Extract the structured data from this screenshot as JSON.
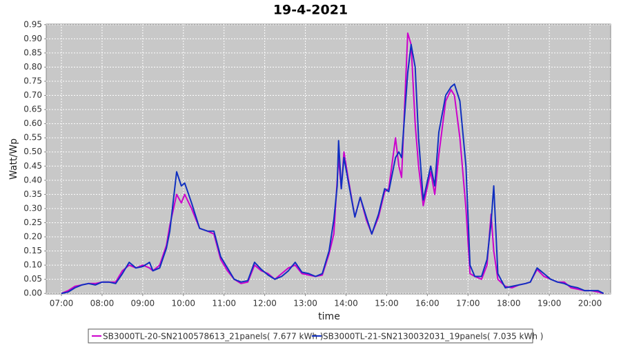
{
  "chart_data": {
    "type": "line",
    "title": "19-4-2021",
    "x_label": "time",
    "y_label": "Watt/Wp",
    "x": [
      420,
      430,
      440,
      450,
      460,
      470,
      480,
      490,
      500,
      510,
      520,
      530,
      540,
      550,
      555,
      565,
      575,
      580,
      590,
      597,
      602,
      612,
      624,
      636,
      645,
      655,
      665,
      675,
      685,
      695,
      705,
      715,
      725,
      735,
      745,
      755,
      765,
      775,
      785,
      795,
      805,
      815,
      822,
      827,
      829,
      833,
      837,
      843,
      853,
      861,
      870,
      878,
      888,
      897,
      903,
      913,
      918,
      922,
      931,
      936,
      942,
      947,
      954,
      965,
      971,
      977,
      987,
      995,
      1000,
      1008,
      1017,
      1023,
      1030,
      1040,
      1048,
      1054,
      1058,
      1064,
      1075,
      1085,
      1095,
      1105,
      1112,
      1122,
      1132,
      1142,
      1152,
      1162,
      1172,
      1182,
      1192,
      1202,
      1212,
      1220
    ],
    "series": [
      {
        "name": "SB3000TL-20-SN2100578613_21panels( 7.677 kWh )",
        "color": "#cc00cc",
        "values": [
          0,
          0.01,
          0.025,
          0.03,
          0.035,
          0.035,
          0.04,
          0.04,
          0.04,
          0.08,
          0.1,
          0.09,
          0.1,
          0.09,
          0.08,
          0.1,
          0.17,
          0.24,
          0.35,
          0.32,
          0.35,
          0.3,
          0.23,
          0.22,
          0.21,
          0.12,
          0.08,
          0.05,
          0.035,
          0.04,
          0.1,
          0.08,
          0.07,
          0.05,
          0.07,
          0.09,
          0.1,
          0.07,
          0.065,
          0.06,
          0.065,
          0.14,
          0.21,
          0.4,
          0.48,
          0.37,
          0.5,
          0.41,
          0.27,
          0.34,
          0.26,
          0.21,
          0.27,
          0.36,
          0.37,
          0.55,
          0.45,
          0.41,
          0.92,
          0.88,
          0.6,
          0.45,
          0.31,
          0.43,
          0.35,
          0.49,
          0.68,
          0.72,
          0.7,
          0.55,
          0.3,
          0.07,
          0.06,
          0.05,
          0.1,
          0.28,
          0.15,
          0.05,
          0.025,
          0.02,
          0.03,
          0.035,
          0.04,
          0.085,
          0.06,
          0.05,
          0.04,
          0.04,
          0.02,
          0.015,
          0.01,
          0.01,
          0.005,
          0
        ]
      },
      {
        "name": "SB3000TL-21-SN2130032031_19panels( 7.035 kWh )",
        "color": "#1030c0",
        "values": [
          0,
          0.005,
          0.02,
          0.03,
          0.035,
          0.03,
          0.04,
          0.04,
          0.035,
          0.07,
          0.11,
          0.09,
          0.095,
          0.11,
          0.08,
          0.09,
          0.16,
          0.22,
          0.43,
          0.38,
          0.39,
          0.32,
          0.23,
          0.22,
          0.22,
          0.13,
          0.09,
          0.05,
          0.04,
          0.045,
          0.11,
          0.085,
          0.065,
          0.05,
          0.06,
          0.08,
          0.11,
          0.075,
          0.07,
          0.06,
          0.07,
          0.15,
          0.26,
          0.38,
          0.54,
          0.37,
          0.48,
          0.4,
          0.27,
          0.34,
          0.27,
          0.21,
          0.28,
          0.37,
          0.36,
          0.48,
          0.5,
          0.48,
          0.78,
          0.88,
          0.8,
          0.55,
          0.33,
          0.45,
          0.38,
          0.57,
          0.7,
          0.73,
          0.74,
          0.68,
          0.45,
          0.1,
          0.06,
          0.06,
          0.12,
          0.25,
          0.38,
          0.07,
          0.02,
          0.025,
          0.03,
          0.035,
          0.04,
          0.09,
          0.07,
          0.05,
          0.04,
          0.035,
          0.025,
          0.02,
          0.01,
          0.01,
          0.01,
          0
        ]
      }
    ],
    "xlim": [
      397.6,
      1230.5
    ],
    "xticks": [
      {
        "value": 420,
        "label": "07:00"
      },
      {
        "value": 480,
        "label": "08:00"
      },
      {
        "value": 540,
        "label": "09:00"
      },
      {
        "value": 600,
        "label": "10:00"
      },
      {
        "value": 660,
        "label": "11:00"
      },
      {
        "value": 720,
        "label": "12:00"
      },
      {
        "value": 780,
        "label": "13:00"
      },
      {
        "value": 840,
        "label": "14:00"
      },
      {
        "value": 900,
        "label": "15:00"
      },
      {
        "value": 960,
        "label": "16:00"
      },
      {
        "value": 1020,
        "label": "17:00"
      },
      {
        "value": 1080,
        "label": "18:00"
      },
      {
        "value": 1140,
        "label": "19:00"
      },
      {
        "value": 1200,
        "label": "20:00"
      }
    ],
    "ylim": [
      -0.002,
      0.952
    ],
    "yticks": [
      {
        "value": 0,
        "label": "0.00"
      },
      0.05,
      {
        "value": 0.1,
        "label": "0.10"
      },
      0.15,
      {
        "value": 0.2,
        "label": "0.20"
      },
      0.25,
      {
        "value": 0.3,
        "label": "0.30"
      },
      0.35,
      {
        "value": 0.4,
        "label": "0.40"
      },
      0.45,
      {
        "value": 0.5,
        "label": "0.50"
      },
      0.55,
      {
        "value": 0.6,
        "label": "0.60"
      },
      0.65,
      {
        "value": 0.7,
        "label": "0.70"
      },
      0.75,
      {
        "value": 0.8,
        "label": "0.80"
      },
      0.85,
      {
        "value": 0.9,
        "label": "0.90"
      },
      0.95
    ],
    "grid": true,
    "legend": "bottom"
  }
}
